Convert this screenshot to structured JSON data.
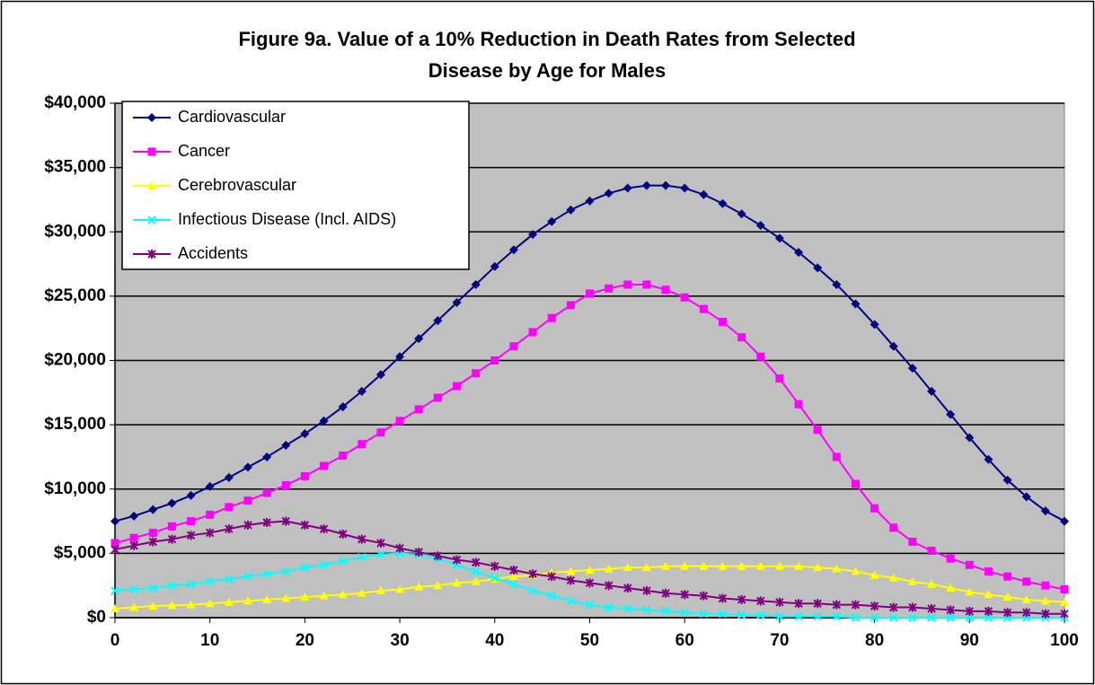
{
  "chart_data": {
    "type": "line",
    "title": "Figure 9a. Value of a 10%  Reduction in Death Rates from Selected Disease by Age for Males",
    "x": [
      0,
      2,
      4,
      6,
      8,
      10,
      12,
      14,
      16,
      18,
      20,
      22,
      24,
      26,
      28,
      30,
      32,
      34,
      36,
      38,
      40,
      42,
      44,
      46,
      48,
      50,
      52,
      54,
      56,
      58,
      60,
      62,
      64,
      66,
      68,
      70,
      72,
      74,
      76,
      78,
      80,
      82,
      84,
      86,
      88,
      90,
      92,
      94,
      96,
      98,
      100
    ],
    "series": [
      {
        "name": "Cardiovascular",
        "color": "#000080",
        "marker": "diamond",
        "values": [
          7500,
          7900,
          8400,
          8900,
          9500,
          10200,
          10900,
          11700,
          12500,
          13400,
          14300,
          15300,
          16400,
          17600,
          18900,
          20300,
          21700,
          23100,
          24500,
          25900,
          27300,
          28600,
          29800,
          30800,
          31700,
          32400,
          33000,
          33400,
          33600,
          33600,
          33400,
          32900,
          32200,
          31400,
          30500,
          29500,
          28400,
          27200,
          25900,
          24400,
          22800,
          21100,
          19400,
          17600,
          15800,
          14000,
          12300,
          10700,
          9400,
          8300,
          7500
        ]
      },
      {
        "name": "Cancer",
        "color": "#ff00ff",
        "marker": "square",
        "values": [
          5800,
          6200,
          6600,
          7100,
          7500,
          8000,
          8600,
          9100,
          9700,
          10300,
          11000,
          11800,
          12600,
          13500,
          14400,
          15300,
          16200,
          17100,
          18000,
          19000,
          20000,
          21100,
          22200,
          23300,
          24300,
          25200,
          25600,
          25900,
          25900,
          25500,
          24900,
          24000,
          23000,
          21800,
          20300,
          18600,
          16600,
          14600,
          12500,
          10400,
          8500,
          7000,
          5900,
          5200,
          4600,
          4100,
          3600,
          3200,
          2800,
          2500,
          2200
        ]
      },
      {
        "name": "Cerebrovascular",
        "color": "#ffff00",
        "marker": "triangle",
        "values": [
          700,
          800,
          900,
          950,
          1000,
          1100,
          1200,
          1300,
          1400,
          1500,
          1600,
          1700,
          1800,
          1900,
          2100,
          2200,
          2400,
          2500,
          2700,
          2800,
          3000,
          3200,
          3300,
          3500,
          3600,
          3700,
          3800,
          3900,
          3900,
          4000,
          4000,
          4000,
          4000,
          4000,
          4000,
          4000,
          4000,
          3900,
          3800,
          3600,
          3300,
          3100,
          2800,
          2600,
          2300,
          2000,
          1800,
          1600,
          1400,
          1300,
          1200
        ]
      },
      {
        "name": "Infectious Disease (Incl. AIDS)",
        "color": "#00ffff",
        "marker": "x",
        "values": [
          2100,
          2200,
          2300,
          2500,
          2600,
          2800,
          3000,
          3200,
          3400,
          3600,
          3900,
          4100,
          4400,
          4700,
          4900,
          5000,
          4900,
          4600,
          4100,
          3600,
          3100,
          2600,
          2100,
          1700,
          1300,
          1000,
          800,
          700,
          600,
          500,
          400,
          300,
          300,
          200,
          200,
          100,
          100,
          100,
          100,
          0,
          0,
          0,
          0,
          0,
          0,
          0,
          0,
          0,
          0,
          0,
          0
        ]
      },
      {
        "name": "Accidents",
        "color": "#800080",
        "marker": "star",
        "values": [
          5300,
          5600,
          5900,
          6100,
          6400,
          6600,
          6900,
          7200,
          7400,
          7500,
          7200,
          6900,
          6500,
          6100,
          5800,
          5400,
          5100,
          4800,
          4500,
          4300,
          4000,
          3700,
          3400,
          3200,
          2900,
          2700,
          2500,
          2300,
          2100,
          1900,
          1800,
          1700,
          1500,
          1400,
          1300,
          1200,
          1100,
          1100,
          1000,
          1000,
          900,
          800,
          800,
          700,
          600,
          500,
          500,
          400,
          400,
          300,
          300
        ]
      }
    ],
    "xlim": [
      0,
      100
    ],
    "xticks": [
      0,
      10,
      20,
      30,
      40,
      50,
      60,
      70,
      80,
      90,
      100
    ],
    "ylim": [
      0,
      40000
    ],
    "yticks": [
      {
        "value": 0,
        "label": "$0"
      },
      {
        "value": 5000,
        "label": "$5,000"
      },
      {
        "value": 10000,
        "label": "$10,000"
      },
      {
        "value": 15000,
        "label": "$15,000"
      },
      {
        "value": 20000,
        "label": "$20,000"
      },
      {
        "value": 25000,
        "label": "$25,000"
      },
      {
        "value": 30000,
        "label": "$30,000"
      },
      {
        "value": 35000,
        "label": "$35,000"
      },
      {
        "value": 40000,
        "label": "$40,000"
      }
    ],
    "grid": true,
    "legend": "upper left",
    "plot_background": "#c0c0c0"
  }
}
